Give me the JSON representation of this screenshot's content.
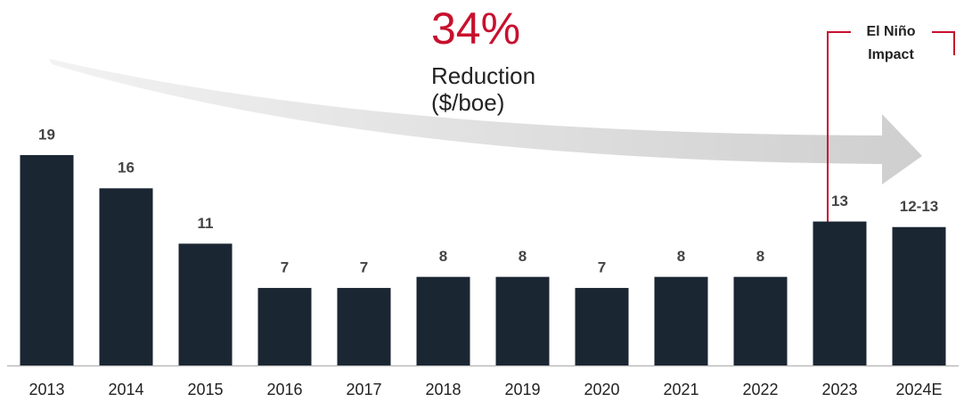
{
  "chart_data": {
    "type": "bar",
    "categories": [
      "2013",
      "2014",
      "2015",
      "2016",
      "2017",
      "2018",
      "2019",
      "2020",
      "2021",
      "2022",
      "2023",
      "2024E"
    ],
    "values": [
      19,
      16,
      11,
      7,
      7,
      8,
      8,
      7,
      8,
      8,
      13,
      12.5
    ],
    "value_labels": [
      "19",
      "16",
      "11",
      "7",
      "7",
      "8",
      "8",
      "7",
      "8",
      "8",
      "13",
      "12-13"
    ],
    "color": "#1b2633",
    "annotations": {
      "headline": "34%",
      "reduction": [
        "Reduction",
        "($/boe)"
      ],
      "impact": [
        "El Niño",
        "Impact"
      ]
    }
  }
}
